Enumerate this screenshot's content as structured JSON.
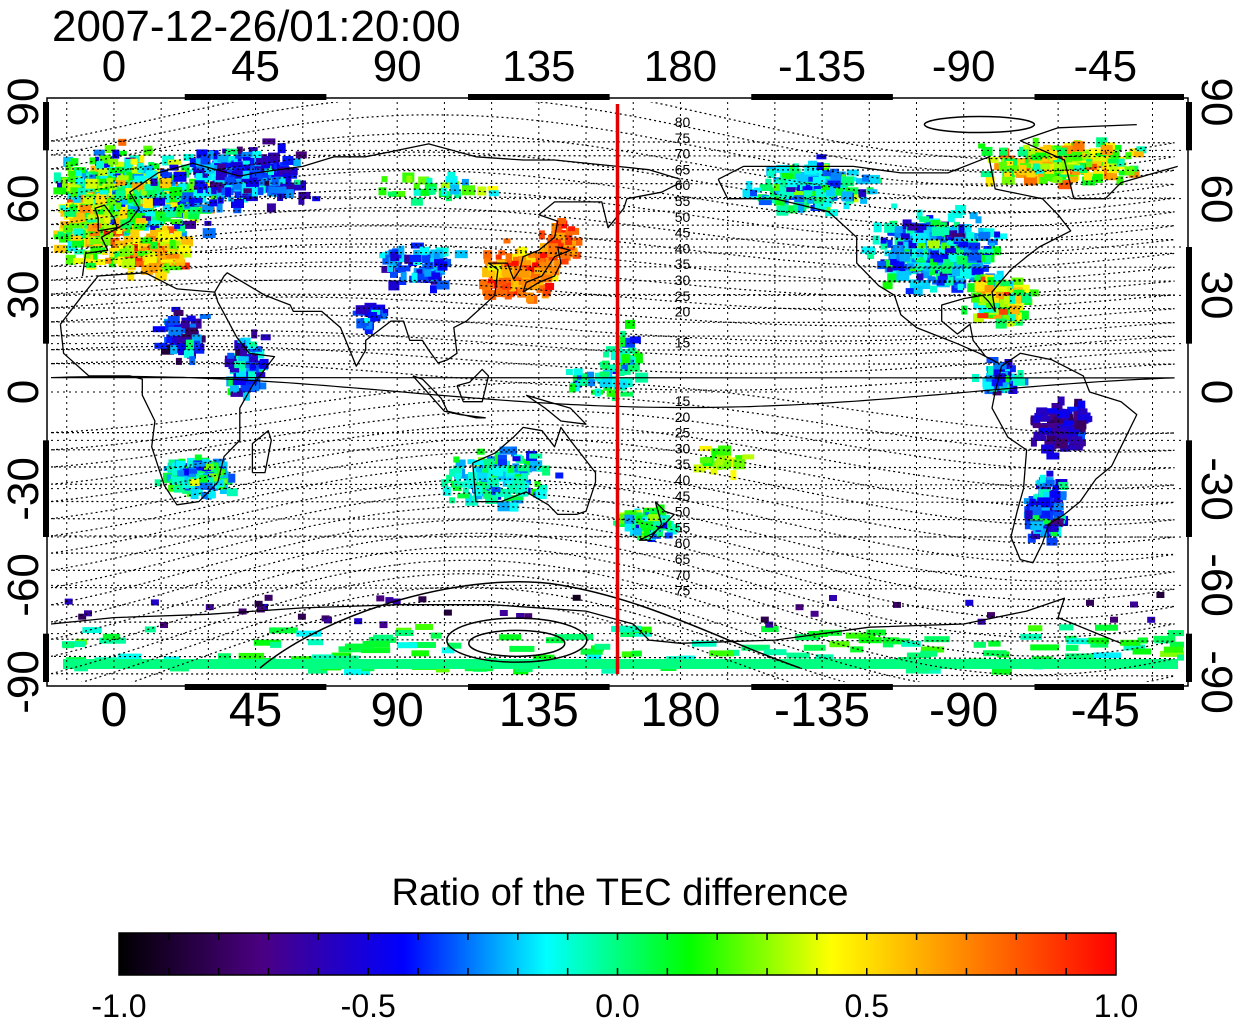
{
  "map": {
    "timestamp": "2007-12-26/01:20:00",
    "top_lon_labels": [
      "0",
      "45",
      "90",
      "135",
      "180",
      "-135",
      "-90",
      "-45"
    ],
    "bottom_lon_labels": [
      "0",
      "45",
      "90",
      "135",
      "180",
      "-135",
      "-90",
      "-45"
    ],
    "left_lat_labels": [
      "90",
      "60",
      "30",
      "0",
      "-30",
      "-60",
      "-90"
    ],
    "right_lat_labels": [
      "90",
      "60",
      "30",
      "0",
      "-30",
      "-60",
      "-90"
    ],
    "lon_start_deg": -20,
    "lon_span_deg": 360,
    "meridian_marker_lon_deg": 160,
    "meridian_marker_color": "#e00000",
    "magnetic_latitude_labels_north": [
      "80",
      "75",
      "70",
      "65",
      "60",
      "55",
      "50",
      "45",
      "40",
      "35",
      "30",
      "25",
      "20",
      "15"
    ],
    "magnetic_latitude_labels_south": [
      "15",
      "20",
      "25",
      "30",
      "35",
      "40",
      "45",
      "50",
      "55",
      "60",
      "65",
      "70",
      "75"
    ]
  },
  "colorbar": {
    "title": "Ratio of the TEC difference",
    "ticks": [
      "-1.0",
      "-0.5",
      "0.0",
      "0.5",
      "1.0"
    ],
    "min": -1.0,
    "max": 1.0,
    "colors": [
      "#000000",
      "#4b0082",
      "#0000ff",
      "#00ffff",
      "#00ff00",
      "#ffff00",
      "#ff7f00",
      "#ff0000"
    ]
  }
}
